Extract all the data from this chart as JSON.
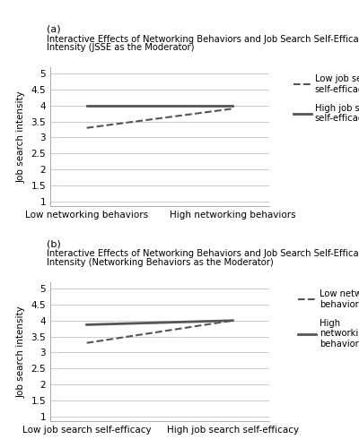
{
  "panel_a": {
    "label": "(a)",
    "title_line1": "Interactive Effects of Networking Behaviors and Job Search Self-Efficacy (JSSE) on Job Search",
    "title_line2": "Intensity (JSSE as the Moderator)",
    "xlabel_low": "Low networking behaviors",
    "xlabel_high": "High networking behaviors",
    "ylabel": "Job search intensity",
    "yticks": [
      1,
      1.5,
      2,
      2.5,
      3,
      3.5,
      4,
      4.5,
      5
    ],
    "ylim": [
      0.85,
      5.2
    ],
    "line_dashed": {
      "x": [
        0,
        1
      ],
      "y": [
        3.3,
        3.9
      ],
      "label": "Low job searc\nself-efficacy"
    },
    "line_solid": {
      "x": [
        0,
        1
      ],
      "y": [
        4.0,
        4.0
      ],
      "label": "High job searc\nself-efficacy"
    }
  },
  "panel_b": {
    "label": "(b)",
    "title_line1": "Interactive Effects of Networking Behaviors and Job Search Self-Efficacy (JSSE) on Job Search",
    "title_line2": "Intensity (Networking Behaviors as the Moderator)",
    "xlabel_low": "Low job search self-efficacy",
    "xlabel_high": "High job search self-efficacy",
    "ylabel": "Job search intensity",
    "yticks": [
      1,
      1.5,
      2,
      2.5,
      3,
      3.5,
      4,
      4.5,
      5
    ],
    "ylim": [
      0.85,
      5.2
    ],
    "line_dashed": {
      "x": [
        0,
        1
      ],
      "y": [
        3.3,
        4.0
      ],
      "label": "Low networki\nbehaviors"
    },
    "line_solid": {
      "x": [
        0,
        1
      ],
      "y": [
        3.87,
        4.0
      ],
      "label": "High\nnetworking\nbehaviors"
    }
  },
  "line_color": "#555555",
  "title_fontsize": 7.2,
  "label_fontsize": 8,
  "tick_fontsize": 7.5,
  "ylabel_fontsize": 7.5,
  "legend_fontsize": 7.2,
  "background_color": "#ffffff"
}
